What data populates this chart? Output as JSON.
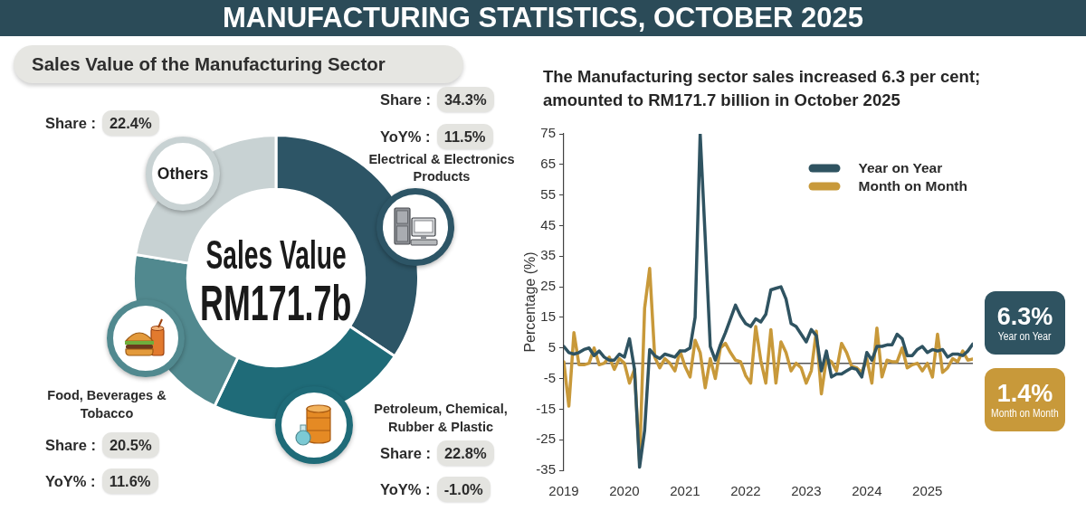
{
  "chart_data": [
    {
      "type": "donut",
      "title": "MANUFACTURING STATISTICS, OCTOBER 2025",
      "subtitle": "Sales Value of the Manufacturing Sector",
      "categories": [
        "Electrical & Electronics Products",
        "Petroleum, Chemical, Rubber & Plastic",
        "Food, Beverages & Tobacco",
        "Others"
      ],
      "values": [
        34.3,
        22.8,
        20.5,
        22.4
      ],
      "colors": [
        "#2d5566",
        "#1f6b78",
        "#51898f",
        "#c8d2d3"
      ],
      "value_labels": [
        "Share : 34.3%",
        "Share : 22.8%",
        "Share : 20.5%",
        "Share : 22.4%"
      ],
      "annotations": [
        "Sales Value",
        "RM171.7b",
        "YoY% : 11.5%",
        "YoY% : -1.0%",
        "YoY% : 11.6%"
      ]
    },
    {
      "type": "line",
      "title": "The Manufacturing sector sales increased 6.3 per cent; amounted to RM171.7 billion in October 2025",
      "ylabel": "Percentage (%)",
      "x": [
        "2019-01",
        "2019-02",
        "2019-03",
        "2019-04",
        "2019-05",
        "2019-06",
        "2019-07",
        "2019-08",
        "2019-09",
        "2019-10",
        "2019-11",
        "2019-12",
        "2020-01",
        "2020-02",
        "2020-03",
        "2020-04",
        "2020-05",
        "2020-06",
        "2020-07",
        "2020-08",
        "2020-09",
        "2020-10",
        "2020-11",
        "2020-12",
        "2021-01",
        "2021-02",
        "2021-03",
        "2021-04",
        "2021-05",
        "2021-06",
        "2021-07",
        "2021-08",
        "2021-09",
        "2021-10",
        "2021-11",
        "2021-12",
        "2022-01",
        "2022-02",
        "2022-03",
        "2022-04",
        "2022-05",
        "2022-06",
        "2022-07",
        "2022-08",
        "2022-09",
        "2022-10",
        "2022-11",
        "2022-12",
        "2023-01",
        "2023-02",
        "2023-03",
        "2023-04",
        "2023-05",
        "2023-06",
        "2023-07",
        "2023-08",
        "2023-09",
        "2023-10",
        "2023-11",
        "2023-12",
        "2024-01",
        "2024-02",
        "2024-03",
        "2024-04",
        "2024-05",
        "2024-06",
        "2024-07",
        "2024-08",
        "2024-09",
        "2024-10",
        "2024-11",
        "2024-12",
        "2025-01",
        "2025-02",
        "2025-03",
        "2025-04",
        "2025-05",
        "2025-06",
        "2025-07",
        "2025-08",
        "2025-09",
        "2025-10"
      ],
      "xlim": [
        "2019-01",
        "2025-10"
      ],
      "xticks": [
        "2019",
        "2020",
        "2021",
        "2022",
        "2023",
        "2024",
        "2025"
      ],
      "ylim": [
        -35,
        75
      ],
      "yticks": [
        -35,
        -25,
        -15,
        -5,
        5,
        15,
        25,
        35,
        45,
        55,
        65,
        75
      ],
      "series": [
        {
          "name": "Year on Year",
          "color": "#2f5361",
          "values": [
            5.5,
            3.5,
            3,
            3.5,
            4.5,
            5,
            2.5,
            4,
            2,
            1,
            1,
            3,
            2,
            8,
            -2,
            -34,
            -22,
            4.5,
            2.5,
            1.5,
            3,
            2.5,
            2,
            4,
            4,
            5,
            15,
            75,
            41,
            5.5,
            1,
            6,
            10,
            14.5,
            19,
            15.5,
            13,
            12,
            14.5,
            13.5,
            16,
            24,
            24.5,
            25,
            21,
            13,
            12,
            9.5,
            7,
            11,
            9,
            -2.5,
            4,
            -4.5,
            -3.5,
            -3.5,
            -2.5,
            -1.5,
            -2,
            -4.5,
            3.5,
            1,
            5.5,
            5.5,
            6,
            6,
            9.5,
            8,
            2.5,
            2.5,
            4.5,
            5.5,
            3.5,
            4.5,
            4,
            4.5,
            2,
            3,
            3,
            2.5,
            4,
            6.3
          ]
        },
        {
          "name": "Month on Month",
          "color": "#c8993a",
          "values": [
            0.5,
            -14,
            10,
            -0.5,
            -0.5,
            0,
            5,
            -0.5,
            0,
            2,
            -2,
            1.5,
            0,
            -6.5,
            -2,
            -32,
            18,
            31,
            2,
            -1.5,
            1.5,
            0,
            -2.5,
            4,
            -1,
            -4.5,
            7.5,
            3.5,
            -8,
            1.5,
            -5,
            5,
            6.5,
            3.5,
            1,
            0.5,
            -4,
            -6.5,
            12,
            1,
            -6.5,
            11,
            -6.5,
            7,
            3.5,
            -2.5,
            0,
            -1.5,
            -6.5,
            -2.5,
            10.5,
            -10,
            1.5,
            0.5,
            -2.5,
            6.5,
            3.5,
            -1,
            -1.5,
            -3,
            1.5,
            -6.5,
            11.5,
            -4.5,
            1,
            0.5,
            0.5,
            5,
            -1.5,
            -0.5,
            0,
            -2.5,
            0,
            -4.5,
            9.5,
            -3,
            -1.5,
            1.5,
            0.5,
            4,
            1,
            1.4
          ]
        }
      ],
      "legend": "top right",
      "ref_lines": [
        {
          "axis": "y",
          "value": 0,
          "color": "#555555"
        }
      ],
      "annotations": [
        "6.3%",
        "1.4%"
      ]
    }
  ]
}
